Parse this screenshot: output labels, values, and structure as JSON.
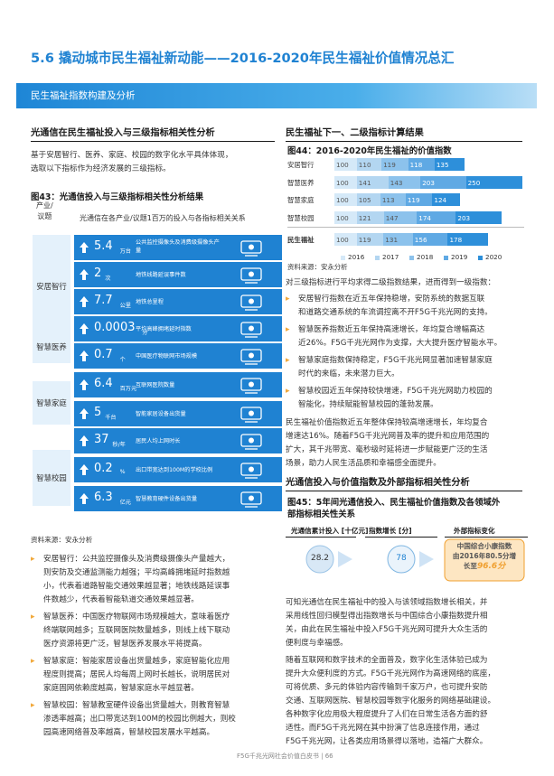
{
  "title": "5.6 撬动城市民生福祉新动能——2016-2020年民生福祉价值情况总汇",
  "banner": "民生福祉指数构建及分析",
  "left": {
    "heading": "光通信在民生福祉投入与三级指标相关性分析",
    "intro": [
      "基于安居智行、医养、家庭、校园的数字化水平具体体现，",
      "选取以下指标作为经济发展的三级指标。"
    ],
    "fig43_title": "图43：光通信投入与三级指标相关性分析结果",
    "col_head_1": [
      "产业/",
      "议题"
    ],
    "col_head_2": "光通信在各产业/议题1百万的投入与各指标相关关系",
    "categories": [
      "安居智行",
      "智慧医养",
      "智慧家庭",
      "智慧校园"
    ],
    "rows": [
      {
        "value": "5.4",
        "unit": "万台",
        "desc": [
          "公共监控摄像头及消费级摄像头产",
          "量"
        ],
        "icon": "camera-icon"
      },
      {
        "value": "2",
        "unit": "次",
        "desc": [
          "地铁线路延误事件数"
        ],
        "icon": "metro-icon"
      },
      {
        "value": "7.7",
        "unit": "公里",
        "desc": [
          "地铁总里程"
        ],
        "icon": "subway-line-icon"
      },
      {
        "value": "0.0003",
        "unit": "分",
        "desc": [
          "平均高峰拥堵延时指数"
        ],
        "icon": "traffic-icon"
      },
      {
        "value": "0.7",
        "unit": "个",
        "desc": [
          "中国医疗物联网市场规模"
        ],
        "icon": "medical-box-icon"
      },
      {
        "value": "6.4",
        "unit": "百万元",
        "desc": [
          "互联网医院数量"
        ],
        "icon": "hospital-icon"
      },
      {
        "value": "5",
        "unit": "千台",
        "desc": [
          "智能家居设备出货量"
        ],
        "icon": "smart-home-icon"
      },
      {
        "value": "37",
        "unit": "秒/年",
        "desc": [
          "居民人均上网时长"
        ],
        "icon": "clock-icon"
      },
      {
        "value": "0.2",
        "unit": "%",
        "desc": [
          "出口带宽达到100M的学校比例"
        ],
        "icon": "school-icon"
      },
      {
        "value": "6.3",
        "unit": "亿元",
        "desc": [
          "智慧教育硬件设备出货量"
        ],
        "icon": "education-icon"
      }
    ],
    "source": "资料来源：安永分析",
    "bullets": [
      [
        "安居智行：公共监控摄像头及消费级摄像头产量越大，",
        "则安防及交通监测能力越强；平均高峰拥堵延时指数越",
        "小，代表着道路智能交通效果越显著；地铁线路延误事",
        "件数越少，代表着智能轨道交通效果越显著。"
      ],
      [
        "智慧医养：中国医疗物联网市场规模越大，意味着医疗",
        "终端联网越多；互联网医院数量越多，则线上线下联动",
        "医疗资源将更广泛，智慧医养发展水平将提高。"
      ],
      [
        "智慧家庭：智能家居设备出货量越多，家庭智能化应用",
        "程度则提高；居民人均每周上网时长越长，说明居民对",
        "家庭固网依赖度越高，智慧家庭水平越显著。"
      ],
      [
        "智慧校园：智慧教室硬件设备出货量越大，则教育智慧",
        "渗透率越高；出口带宽达到100M的校园比例越大，则校",
        "园高速网络普及率越高，智慧校园发展水平越高。"
      ]
    ]
  },
  "right": {
    "heading": "民生福祉下一、二级指标计算结果",
    "fig44_title": "图44：2016-2020年民生福祉的价值指数",
    "fig44_source": "资料来源：安永分析",
    "text1": "对三级指标进行平均求得二级指数结果，进而得到一级指数：",
    "bullets": [
      [
        "安居智行指数在近五年保持稳增，安防系统的数据互联",
        "和道路交通系统的车流调控离不开F5G千兆光网的支持。"
      ],
      [
        "智慧医养指数近五年保持高速增长，年均复合增幅高达",
        "近26%。F5G千兆光网作为支撑，大大提升医疗智能水平。"
      ],
      [
        "智慧家庭指数保持稳定，F5G千兆光网显著加速智慧家庭",
        "时代的来临，未来潜力巨大。"
      ],
      [
        "智慧校园近五年保持较快增速，F5G千兆光网助力校园的",
        "智能化，持续赋能智慧校园的蓬勃发展。"
      ]
    ],
    "para2": [
      "民生福祉价值指数近五年整体保持较高增速增长，年均复合",
      "增速达16%。随着F5G千兆光网普及率的提升和应用范围的",
      "扩大，其千兆带宽、毫秒级时延将进一步赋能更广泛的生活",
      "场景，助力人民生活品质和幸福感全面提升。"
    ],
    "heading2": "光通信投入与价值指数及外部指标相关性分析",
    "fig45_title": [
      "图45：5年间光通信投入、民生福祉价值指数及各领域外",
      "部指标相关性关系"
    ],
    "fig45_col1": "光通信累计投入 [十亿元]",
    "fig45_col2": "指数增长 [分]",
    "fig45_col3": "外部指标变化",
    "fig45_v1": "28.2",
    "fig45_v2": "78",
    "fig45_ext": [
      "中国综合小康指数",
      "由2016年80.5分增",
      "长至"
    ],
    "fig45_ext_val": "96.6分",
    "para3": [
      "可知光通信在民生福祉中的投入与该领域指数增长相关，并",
      "采用线性回归模型得出指数增长与中国综合小康指数提升相",
      "关，由此在民生福祉中投入F5G千兆光网可提升大众生活的",
      "便利度与幸福感。"
    ],
    "para4": [
      "随着互联网和数字技术的全面普及，数字化生活体验已成为",
      "提升大众便利度的方式。F5G千兆光网作为高速网络的底座，",
      "可将优质、多元的体验内容传输到千家万户，也可提升安防",
      "交通、互联网医院、智慧校园等数字化服务的网络基础建设。",
      "各种数字化应用极大程度提升了人们在日常生活各方面的舒",
      "适性。而F5G千兆光网在其中扮演了信息连接作用，通过",
      "F5G千兆光网，让各类应用场景得以落地，造福广大群众。"
    ]
  },
  "chart_data": {
    "type": "bar",
    "orientation": "horizontal",
    "stacked": true,
    "title": "图44：2016-2020年民生福祉的价值指数",
    "categories": [
      "安居智行",
      "智慧医养",
      "智慧家庭",
      "智慧校园",
      "民生福祉"
    ],
    "series": [
      {
        "name": "2016",
        "values": [
          100,
          100,
          100,
          100,
          100
        ]
      },
      {
        "name": "2017",
        "values": [
          110,
          141,
          105,
          121,
          119
        ]
      },
      {
        "name": "2018",
        "values": [
          119,
          143,
          113,
          147,
          131
        ]
      },
      {
        "name": "2019",
        "values": [
          118,
          203,
          119,
          174,
          156
        ]
      },
      {
        "name": "2020",
        "values": [
          135,
          250,
          124,
          203,
          178
        ]
      }
    ],
    "colors": [
      "#d5e9f8",
      "#b3d6f1",
      "#8cc2ec",
      "#5fa9e4",
      "#2d8fda"
    ]
  },
  "footer": {
    "doc": "F5G千兆光网社会价值白皮书",
    "page": "66"
  },
  "colors": {
    "accent": "#1f82d2",
    "bullet": "#f1a83a",
    "highlight": "#f0a030"
  }
}
